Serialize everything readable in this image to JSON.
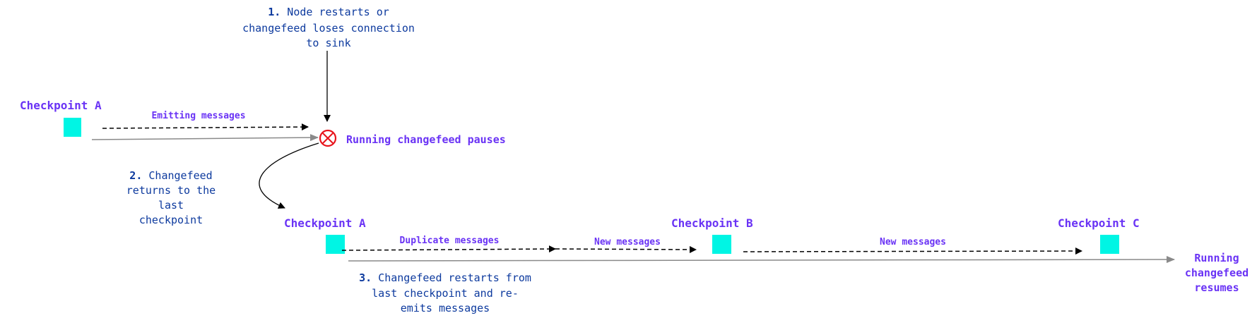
{
  "colors": {
    "checkpoint": "#00f5e4",
    "label": "#6a33f5",
    "step": "#0d3a9e",
    "error": "#e8141c",
    "timeline": "#8a8a8a"
  },
  "icons": {
    "pause": "circle-x-icon"
  },
  "step1": {
    "number": "1.",
    "lines": [
      " Node restarts or",
      "changefeed loses connection",
      "to sink"
    ]
  },
  "step2": {
    "number": "2.",
    "lines": [
      " Changefeed",
      "returns to the",
      "last",
      "checkpoint"
    ]
  },
  "step3": {
    "number": "3.",
    "lines": [
      " Changefeed restarts from",
      "last checkpoint and re-",
      "emits messages"
    ]
  },
  "top": {
    "checkpoint": "Checkpoint A",
    "message": "Emitting messages",
    "state": "Running changefeed pauses"
  },
  "bottom": {
    "checkpoints": [
      "Checkpoint A",
      "Checkpoint B",
      "Checkpoint C"
    ],
    "messages": [
      "Duplicate messages",
      "New messages",
      "New messages"
    ],
    "state_lines": [
      "Running",
      "changefeed",
      "resumes"
    ]
  }
}
